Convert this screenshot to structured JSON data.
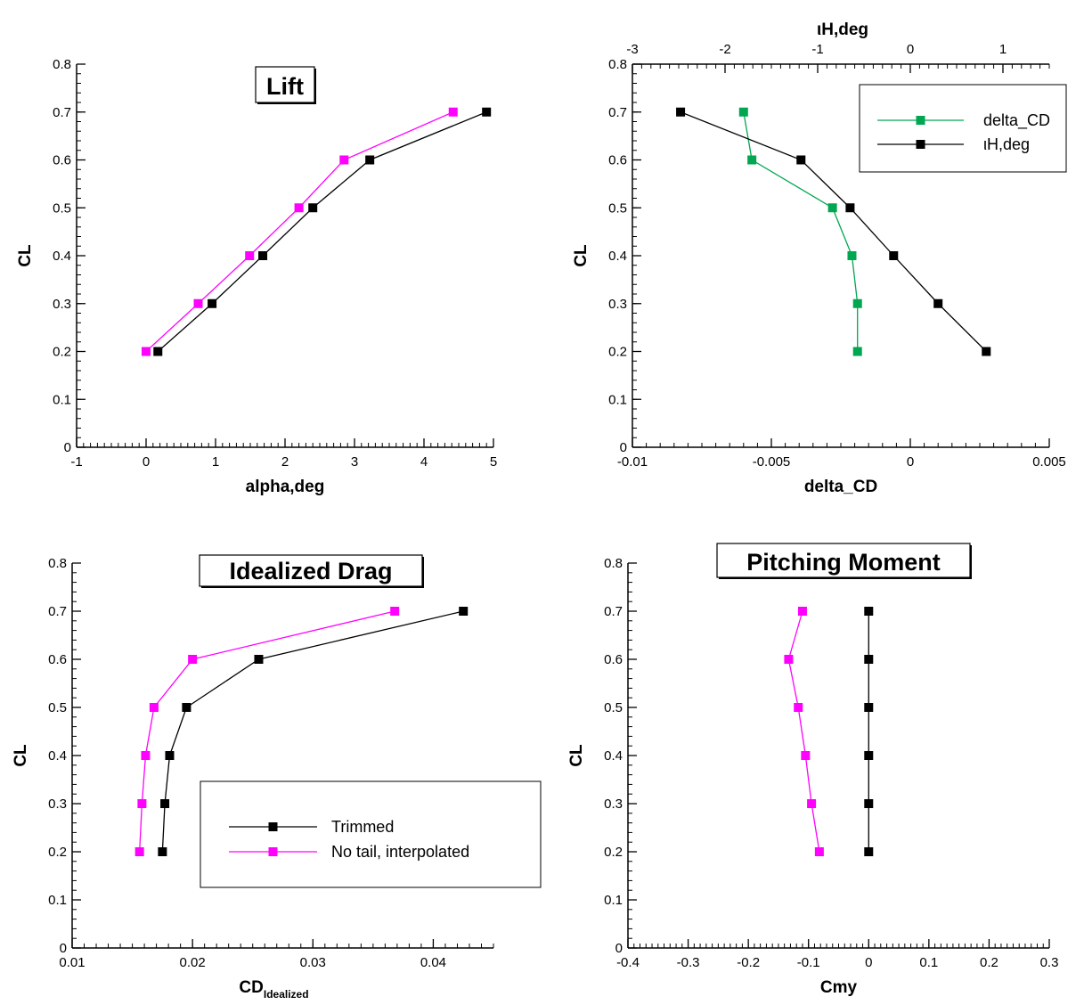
{
  "chart_data": [
    {
      "type": "line",
      "title": "Lift",
      "xlabel": "alpha,deg",
      "ylabel": "CL",
      "xlim": [
        -1,
        5
      ],
      "ylim": [
        0,
        0.8
      ],
      "xticks": [
        "-1",
        "0",
        "1",
        "2",
        "3",
        "4",
        "5"
      ],
      "yticks": [
        "0",
        "0.1",
        "0.2",
        "0.3",
        "0.4",
        "0.5",
        "0.6",
        "0.7",
        "0.8"
      ],
      "grid": false,
      "series": [
        {
          "color": "#000000",
          "points": [
            [
              0.17,
              0.2
            ],
            [
              0.95,
              0.3
            ],
            [
              1.68,
              0.4
            ],
            [
              2.4,
              0.5
            ],
            [
              3.22,
              0.6
            ],
            [
              4.9,
              0.7
            ]
          ]
        },
        {
          "color": "#ff00ff",
          "points": [
            [
              0.0,
              0.2
            ],
            [
              0.75,
              0.3
            ],
            [
              1.49,
              0.4
            ],
            [
              2.2,
              0.5
            ],
            [
              2.85,
              0.6
            ],
            [
              4.42,
              0.7
            ]
          ]
        }
      ]
    },
    {
      "type": "line",
      "title": "",
      "xlabel": "delta_CD",
      "ylabel": "CL",
      "x2label": "ιH,deg",
      "xlim": [
        -0.01,
        0.005
      ],
      "x2lim": [
        -3,
        1.5
      ],
      "ylim": [
        0,
        0.8
      ],
      "xticks": [
        "-0.01",
        "-0.005",
        "0",
        "0.005"
      ],
      "x2ticks": [
        "-3",
        "-2",
        "-1",
        "0",
        "1"
      ],
      "yticks": [
        "0",
        "0.1",
        "0.2",
        "0.3",
        "0.4",
        "0.5",
        "0.6",
        "0.7",
        "0.8"
      ],
      "grid": false,
      "legend_position": "top-right",
      "series": [
        {
          "name": "delta_CD",
          "axis": "bottom",
          "color": "#00a650",
          "points": [
            [
              -0.006,
              0.7
            ],
            [
              -0.0057,
              0.6
            ],
            [
              -0.0028,
              0.5
            ],
            [
              -0.0021,
              0.4
            ],
            [
              -0.0019,
              0.3
            ],
            [
              -0.0019,
              0.2
            ]
          ]
        },
        {
          "name": "ιH,deg",
          "axis": "top",
          "color": "#000000",
          "points": [
            [
              -2.48,
              0.7
            ],
            [
              -1.18,
              0.6
            ],
            [
              -0.65,
              0.5
            ],
            [
              -0.18,
              0.4
            ],
            [
              0.3,
              0.3
            ],
            [
              0.82,
              0.2
            ]
          ]
        }
      ]
    },
    {
      "type": "line",
      "title": "Idealized Drag",
      "xlabel": "CD",
      "xlabel_sub": "Idealized",
      "ylabel": "CL",
      "xlim": [
        0.01,
        0.045
      ],
      "ylim": [
        0,
        0.8
      ],
      "xticks": [
        "0.01",
        "0.02",
        "0.03",
        "0.04"
      ],
      "yticks": [
        "0",
        "0.1",
        "0.2",
        "0.3",
        "0.4",
        "0.5",
        "0.6",
        "0.7",
        "0.8"
      ],
      "grid": false,
      "legend_position": "bottom-right",
      "series": [
        {
          "name": "Trimmed",
          "color": "#000000",
          "points": [
            [
              0.0175,
              0.2
            ],
            [
              0.0177,
              0.3
            ],
            [
              0.0181,
              0.4
            ],
            [
              0.0195,
              0.5
            ],
            [
              0.0255,
              0.6
            ],
            [
              0.0425,
              0.7
            ]
          ]
        },
        {
          "name": "No tail, interpolated",
          "color": "#ff00ff",
          "points": [
            [
              0.0156,
              0.2
            ],
            [
              0.0158,
              0.3
            ],
            [
              0.0161,
              0.4
            ],
            [
              0.0168,
              0.5
            ],
            [
              0.02,
              0.6
            ],
            [
              0.0368,
              0.7
            ]
          ]
        }
      ]
    },
    {
      "type": "line",
      "title": "Pitching Moment",
      "xlabel": "Cmy",
      "ylabel": "CL",
      "xlim": [
        -0.4,
        0.3
      ],
      "ylim": [
        0,
        0.8
      ],
      "xticks": [
        "-0.4",
        "-0.3",
        "-0.2",
        "-0.1",
        "0",
        "0.1",
        "0.2",
        "0.3"
      ],
      "yticks": [
        "0",
        "0.1",
        "0.2",
        "0.3",
        "0.4",
        "0.5",
        "0.6",
        "0.7",
        "0.8"
      ],
      "grid": false,
      "series": [
        {
          "color": "#000000",
          "points": [
            [
              0.0,
              0.2
            ],
            [
              0.0,
              0.3
            ],
            [
              0.0,
              0.4
            ],
            [
              0.0,
              0.5
            ],
            [
              0.0,
              0.6
            ],
            [
              0.0,
              0.7
            ]
          ]
        },
        {
          "color": "#ff00ff",
          "points": [
            [
              -0.082,
              0.2
            ],
            [
              -0.095,
              0.3
            ],
            [
              -0.105,
              0.4
            ],
            [
              -0.117,
              0.5
            ],
            [
              -0.133,
              0.6
            ],
            [
              -0.11,
              0.7
            ]
          ]
        }
      ]
    }
  ]
}
